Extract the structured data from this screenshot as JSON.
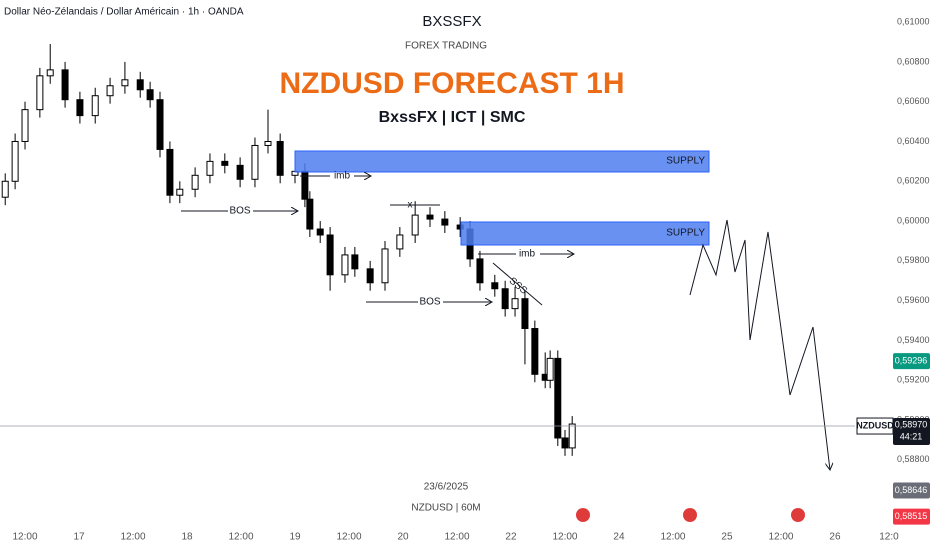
{
  "chart_data": {
    "type": "candlestick",
    "header": "Dollar Néo-Zélandais / Dollar Américain · 1h · OANDA",
    "watermark_title": "BXSSFX",
    "watermark_subtitle": "FOREX TRADING",
    "title": "NZDUSD FORECAST 1H",
    "subtitle": "BxssFX | ICT | SMC",
    "watermark_date": "23/6/2025",
    "watermark_symbol": "NZDUSD | 60M",
    "annotations": {
      "supply": [
        "SUPPLY",
        "SUPPLY"
      ],
      "imb": [
        "imb",
        "imb"
      ],
      "bos": [
        "BOS",
        "BOS"
      ],
      "sweep": "SSS",
      "mark": "x"
    },
    "x": [
      -4.4,
      -2.2,
      0,
      3.3,
      5.6,
      8.9,
      12.2,
      15.6,
      18.9,
      22.2,
      25.6,
      27.8,
      30,
      32.2,
      34.4,
      37.8,
      41.1,
      44.4,
      47.8,
      51.1,
      54,
      56.7,
      60,
      62.2,
      63.3,
      65.6,
      67.8,
      71.1,
      73.3,
      76.7,
      80,
      83.3,
      86.7,
      90,
      93.3,
      96.7,
      98.9,
      101.1,
      104.4,
      106.7,
      108.9,
      111.1,
      113.3,
      115.6,
      116.7,
      118.4,
      120,
      121.6
    ],
    "open": [
      0.6012,
      0.602,
      0.604,
      0.6056,
      0.6073,
      0.6076,
      0.6061,
      0.6053,
      0.6063,
      0.6068,
      0.6071,
      0.6066,
      0.6061,
      0.6036,
      0.6013,
      0.6016,
      0.6023,
      0.603,
      0.6028,
      0.6021,
      0.6038,
      0.604,
      0.6023,
      0.6025,
      0.6011,
      0.5996,
      0.5993,
      0.5973,
      0.5983,
      0.5976,
      0.5969,
      0.5986,
      0.5993,
      0.6003,
      0.6001,
      0.5998,
      0.5996,
      0.5981,
      0.5969,
      0.5966,
      0.5956,
      0.5961,
      0.5946,
      0.5923,
      0.592,
      0.5931,
      0.5891,
      0.5886
    ],
    "high": [
      0.6024,
      0.6044,
      0.606,
      0.6077,
      0.6089,
      0.608,
      0.6065,
      0.6067,
      0.6072,
      0.608,
      0.6075,
      0.607,
      0.6065,
      0.604,
      0.602,
      0.6027,
      0.6034,
      0.6034,
      0.6032,
      0.6042,
      0.6056,
      0.6044,
      0.6029,
      0.6029,
      0.6015,
      0.6,
      0.5997,
      0.5987,
      0.5987,
      0.598,
      0.599,
      0.5997,
      0.601,
      0.6007,
      0.6005,
      0.6002,
      0.6,
      0.5985,
      0.5973,
      0.597,
      0.5967,
      0.5965,
      0.595,
      0.5934,
      0.5935,
      0.5935,
      0.5895,
      0.5902
    ],
    "low": [
      0.6008,
      0.6016,
      0.6036,
      0.6052,
      0.6069,
      0.6057,
      0.6049,
      0.6049,
      0.6059,
      0.6064,
      0.6062,
      0.6057,
      0.6032,
      0.6009,
      0.6009,
      0.6012,
      0.6019,
      0.6024,
      0.6017,
      0.6017,
      0.6034,
      0.6019,
      0.6019,
      0.6007,
      0.5992,
      0.5989,
      0.5965,
      0.5969,
      0.5972,
      0.5965,
      0.5965,
      0.5982,
      0.5989,
      0.5997,
      0.5994,
      0.5992,
      0.5977,
      0.5965,
      0.5962,
      0.5952,
      0.5952,
      0.5928,
      0.5919,
      0.5916,
      0.5916,
      0.5887,
      0.5882,
      0.5882
    ],
    "close": [
      0.602,
      0.604,
      0.6056,
      0.6073,
      0.6076,
      0.6061,
      0.6053,
      0.6063,
      0.6068,
      0.6071,
      0.6066,
      0.6061,
      0.6036,
      0.6013,
      0.6016,
      0.6023,
      0.603,
      0.6028,
      0.6021,
      0.6038,
      0.604,
      0.6023,
      0.6025,
      0.6011,
      0.5996,
      0.5993,
      0.5973,
      0.5983,
      0.5976,
      0.5969,
      0.5986,
      0.5993,
      0.6003,
      0.6001,
      0.5998,
      0.5996,
      0.5981,
      0.5969,
      0.5966,
      0.5956,
      0.5961,
      0.5946,
      0.5923,
      0.592,
      0.5931,
      0.5891,
      0.5886,
      0.5898
    ],
    "xlim": [
      -5.56,
      201.56
    ],
    "ylim": [
      0.58347,
      0.61111
    ],
    "grid": false,
    "xticks": [
      {
        "value": 0,
        "label": "12:00"
      },
      {
        "value": 12,
        "label": "17"
      },
      {
        "value": 24,
        "label": "12:00"
      },
      {
        "value": 36,
        "label": "18"
      },
      {
        "value": 48,
        "label": "12:00"
      },
      {
        "value": 60,
        "label": "19"
      },
      {
        "value": 72,
        "label": "12:00"
      },
      {
        "value": 84,
        "label": "20"
      },
      {
        "value": 96,
        "label": "12:00"
      },
      {
        "value": 108,
        "label": "22"
      },
      {
        "value": 120,
        "label": "12:00"
      },
      {
        "value": 132,
        "label": "24"
      },
      {
        "value": 144,
        "label": "12:00"
      },
      {
        "value": 156,
        "label": "25"
      },
      {
        "value": 168,
        "label": "12:00"
      },
      {
        "value": 180,
        "label": "26"
      },
      {
        "value": 192,
        "label": "12:0"
      }
    ],
    "yticks": [
      {
        "value": 0.61,
        "label": "0,61000"
      },
      {
        "value": 0.608,
        "label": "0,60800"
      },
      {
        "value": 0.606,
        "label": "0,60600"
      },
      {
        "value": 0.604,
        "label": "0,60400"
      },
      {
        "value": 0.602,
        "label": "0,60200"
      },
      {
        "value": 0.6,
        "label": "0,60000"
      },
      {
        "value": 0.598,
        "label": "0,59800"
      },
      {
        "value": 0.596,
        "label": "0,59600"
      },
      {
        "value": 0.594,
        "label": "0,59400"
      },
      {
        "value": 0.592,
        "label": "0,59200"
      },
      {
        "value": 0.59,
        "label": "0,59000"
      },
      {
        "value": 0.588,
        "label": "0,58800"
      }
    ],
    "up_color": "#ffffff",
    "down_color": "#000000",
    "price_tags": [
      {
        "value": 0.59296,
        "label": "0,59296",
        "color": "#089981"
      },
      {
        "value": 0.5897,
        "label": "0,58970",
        "color": "#131722",
        "symbol": "NZDUSD",
        "countdown": "44:21"
      },
      {
        "value": 0.58646,
        "label": "0,58646",
        "color": "#6a6d78"
      },
      {
        "value": 0.58515,
        "label": "0,58515",
        "color": "#f23645"
      }
    ]
  }
}
